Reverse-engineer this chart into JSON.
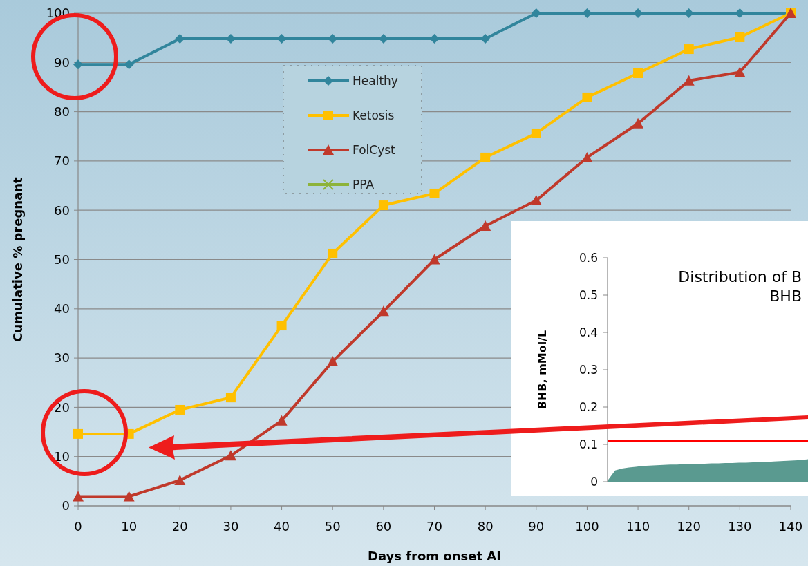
{
  "chart_data": [
    {
      "type": "line",
      "xlabel": "Days from onset AI",
      "ylabel": "Cumulative % pregnant",
      "x": [
        0,
        10,
        20,
        30,
        40,
        50,
        60,
        70,
        80,
        90,
        100,
        110,
        120,
        130,
        140
      ],
      "xlim": [
        0,
        140
      ],
      "xticks": [
        0,
        10,
        20,
        30,
        40,
        50,
        60,
        70,
        80,
        90,
        100,
        110,
        120,
        130,
        140
      ],
      "ylim": [
        0,
        100
      ],
      "yticks": [
        0,
        10,
        20,
        30,
        40,
        50,
        60,
        70,
        80,
        90,
        100
      ],
      "grid": "y",
      "legend": "top left",
      "line_style": "solid",
      "series": [
        {
          "name": "Healthy",
          "color": "#31859c",
          "marker": "diamond",
          "values": [
            89.6,
            89.6,
            94.8,
            94.8,
            94.8,
            94.8,
            94.8,
            94.8,
            94.8,
            100,
            100,
            100,
            100,
            100,
            100
          ]
        },
        {
          "name": "Ketosis",
          "color": "#ffc000",
          "marker": "square",
          "values": [
            14.6,
            14.6,
            19.5,
            22.0,
            36.6,
            51.2,
            61.0,
            63.4,
            70.7,
            75.6,
            82.9,
            87.8,
            92.7,
            95.1,
            100
          ]
        },
        {
          "name": "FolCyst",
          "color": "#c0392b",
          "marker": "triangle",
          "values": [
            1.9,
            1.9,
            5.2,
            10.2,
            17.3,
            29.3,
            39.5,
            50.0,
            56.8,
            62.0,
            70.7,
            77.6,
            86.3,
            88.0,
            100
          ]
        },
        {
          "name": "PPA",
          "color": "#8db33a",
          "marker": "cross",
          "values": [
            null,
            null,
            null,
            null,
            null,
            null,
            null,
            null,
            null,
            null,
            null,
            null,
            null,
            null,
            null
          ]
        }
      ]
    },
    {
      "type": "area",
      "title": "Distribution of B\nBHB",
      "ylabel": "BHB, mMol/L",
      "categories": [
        null,
        null,
        null,
        null,
        null,
        null,
        null,
        null,
        null,
        null,
        null,
        null,
        null,
        null,
        null,
        null,
        null,
        null,
        null,
        null,
        null,
        null,
        null,
        null,
        null,
        null,
        null,
        null,
        null,
        null
      ],
      "values": [
        0.005,
        0.03,
        0.035,
        0.038,
        0.04,
        0.042,
        0.043,
        0.044,
        0.045,
        0.046,
        0.046,
        0.047,
        0.047,
        0.048,
        0.048,
        0.049,
        0.049,
        0.05,
        0.05,
        0.051,
        0.051,
        0.052,
        0.052,
        0.053,
        0.054,
        0.055,
        0.056,
        0.057,
        0.058,
        0.06
      ],
      "color": "#5a9a90",
      "ylim": [
        0,
        0.6
      ],
      "yticks": [
        0,
        0.1,
        0.2,
        0.3,
        0.4,
        0.5,
        0.6
      ],
      "tick_labels": "y",
      "ref_lines": [
        {
          "axis": "y",
          "value": 0.11,
          "color": "#ff0000"
        }
      ]
    }
  ]
}
